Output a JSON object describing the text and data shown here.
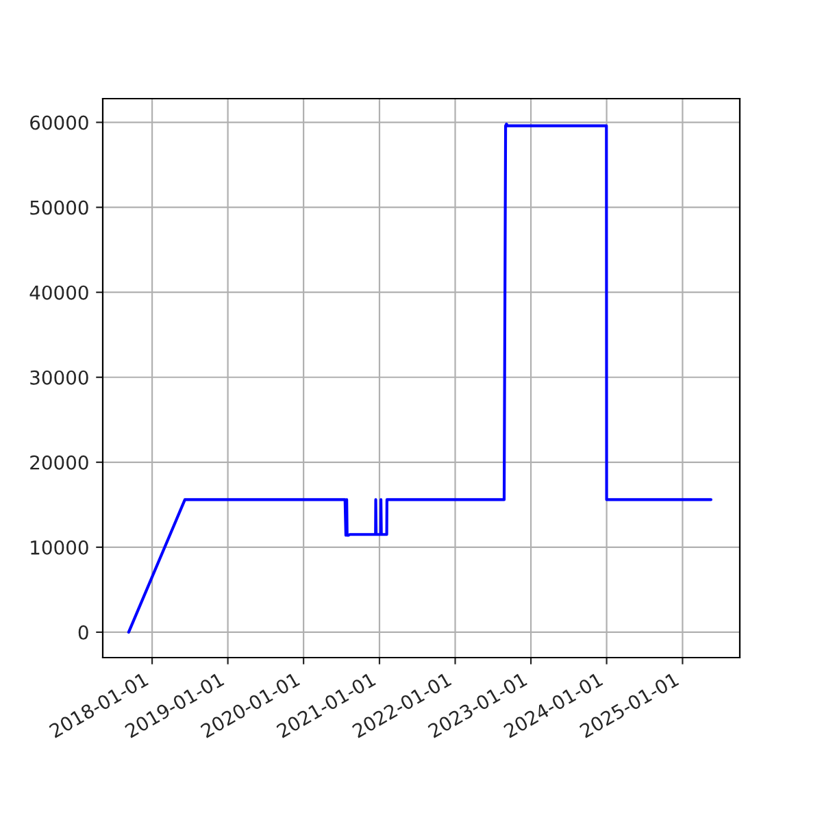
{
  "chart_data": {
    "type": "line",
    "x": [
      "2017-09-10",
      "2018-06-08",
      "2020-07-19",
      "2020-07-23",
      "2020-07-27",
      "2020-07-29",
      "2020-08-04",
      "2020-08-11",
      "2020-09-01",
      "2020-09-03",
      "2020-12-13",
      "2020-12-14",
      "2020-12-16",
      "2020-12-20",
      "2020-12-21",
      "2021-01-07",
      "2021-01-08",
      "2021-01-10",
      "2021-01-14",
      "2021-01-15",
      "2021-02-05",
      "2021-02-06",
      "2022-08-25",
      "2022-09-01",
      "2022-09-05",
      "2022-09-10",
      "2023-12-31",
      "2024-01-01",
      "2025-05-18"
    ],
    "series": [
      {
        "color": "#0000ff",
        "values": [
          0,
          15600,
          15600,
          11400,
          15600,
          11400,
          11400,
          11500,
          11500,
          11500,
          11500,
          15600,
          11500,
          11500,
          11500,
          11500,
          15600,
          11500,
          11500,
          11500,
          11500,
          15600,
          15600,
          59600,
          59800,
          59600,
          59600,
          15600,
          15600
        ]
      }
    ],
    "xlim": [
      "2017-05-08",
      "2025-10-04"
    ],
    "xticks": [
      "2018-01-01",
      "2019-01-01",
      "2020-01-01",
      "2021-01-01",
      "2022-01-01",
      "2023-01-01",
      "2024-01-01",
      "2025-01-01"
    ],
    "ylim": [
      -2990,
      62790
    ],
    "yticks": [
      0,
      10000,
      20000,
      30000,
      40000,
      50000,
      60000
    ],
    "grid": true,
    "marker": "none",
    "line_style": "solid"
  }
}
